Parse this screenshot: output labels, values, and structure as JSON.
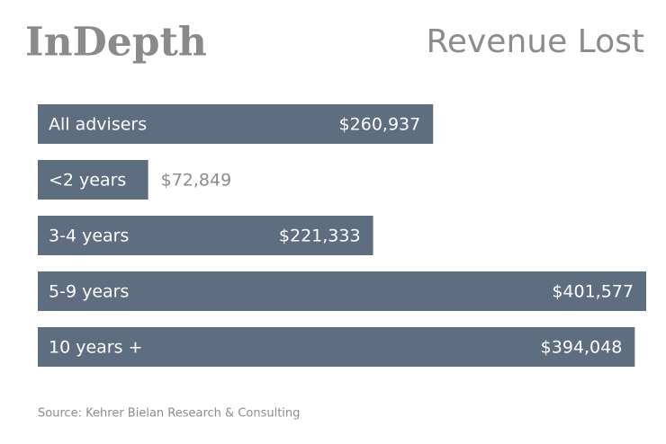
{
  "chart_data": {
    "type": "bar",
    "orientation": "horizontal",
    "brand": "InDepth",
    "title": "Revenue Lost",
    "categories": [
      "All advisers",
      "<2 years",
      "3-4 years",
      "5-9 years",
      "10 years +"
    ],
    "values": [
      260937,
      72849,
      221333,
      401577,
      394048
    ],
    "value_labels": [
      "$260,937",
      "$72,849",
      "$221,333",
      "$401,577",
      "$394,048"
    ],
    "color": "#5f6d80",
    "source": "Source: Kehrer Bielan Research & Consulting"
  }
}
